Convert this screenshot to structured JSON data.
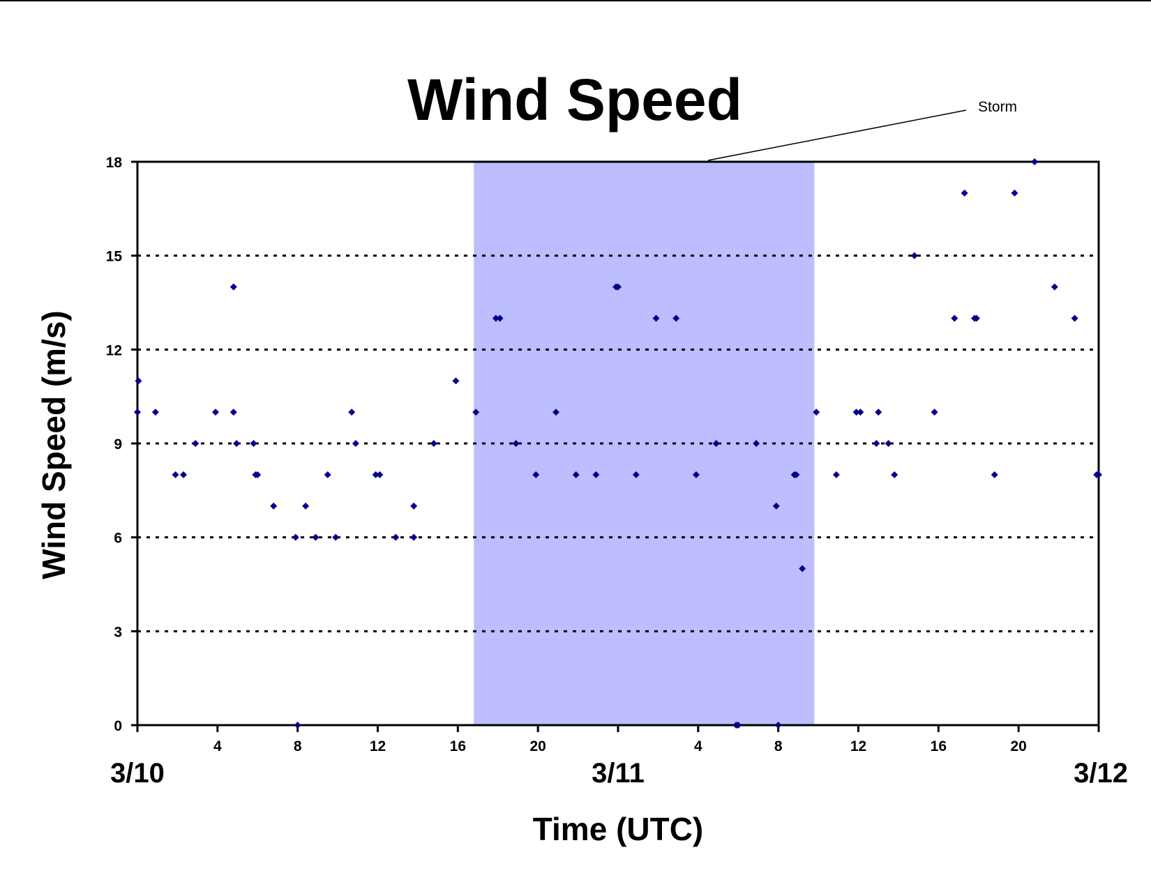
{
  "chart_data": {
    "type": "scatter",
    "title": "Wind Speed",
    "xlabel": "Time (UTC)",
    "ylabel": "Wind Speed (m/s)",
    "ylim": [
      0,
      18
    ],
    "yticks": [
      0,
      3,
      6,
      9,
      12,
      15,
      18
    ],
    "xlim_hours": [
      0,
      48
    ],
    "xtick_hours": [
      0,
      4,
      8,
      12,
      16,
      20,
      24,
      28,
      32,
      36,
      40,
      44,
      48
    ],
    "xtick_labels": [
      "",
      "4",
      "8",
      "12",
      "16",
      "20",
      "",
      "4",
      "8",
      "12",
      "16",
      "20",
      ""
    ],
    "date_labels": [
      {
        "hour": 0,
        "label": "3/10"
      },
      {
        "hour": 24,
        "label": "3/11"
      },
      {
        "hour": 48,
        "label": "3/12"
      }
    ],
    "grid": "horizontal dotted",
    "marker_color": "#00008B",
    "shaded_region": {
      "label": "Storm",
      "from_hour": 16.8,
      "to_hour": 33.8,
      "color": "#BDBDFF"
    },
    "annotations": [
      {
        "text": "Storm"
      }
    ],
    "points": [
      {
        "x": 0.0,
        "y": 10
      },
      {
        "x": 0.05,
        "y": 11
      },
      {
        "x": 0.9,
        "y": 10
      },
      {
        "x": 1.9,
        "y": 8
      },
      {
        "x": 2.3,
        "y": 8
      },
      {
        "x": 2.9,
        "y": 9
      },
      {
        "x": 3.9,
        "y": 10
      },
      {
        "x": 4.8,
        "y": 14
      },
      {
        "x": 4.8,
        "y": 10
      },
      {
        "x": 4.95,
        "y": 9
      },
      {
        "x": 5.8,
        "y": 9
      },
      {
        "x": 5.9,
        "y": 8
      },
      {
        "x": 6.0,
        "y": 8
      },
      {
        "x": 6.8,
        "y": 7
      },
      {
        "x": 7.9,
        "y": 6
      },
      {
        "x": 8.0,
        "y": 0
      },
      {
        "x": 8.4,
        "y": 7
      },
      {
        "x": 8.9,
        "y": 6
      },
      {
        "x": 9.5,
        "y": 8
      },
      {
        "x": 9.9,
        "y": 6
      },
      {
        "x": 10.7,
        "y": 10
      },
      {
        "x": 10.9,
        "y": 9
      },
      {
        "x": 11.9,
        "y": 8
      },
      {
        "x": 12.1,
        "y": 8
      },
      {
        "x": 12.9,
        "y": 6
      },
      {
        "x": 13.8,
        "y": 7
      },
      {
        "x": 13.8,
        "y": 6
      },
      {
        "x": 14.8,
        "y": 9
      },
      {
        "x": 15.9,
        "y": 11
      },
      {
        "x": 16.9,
        "y": 10
      },
      {
        "x": 17.9,
        "y": 13
      },
      {
        "x": 18.1,
        "y": 13
      },
      {
        "x": 18.9,
        "y": 9
      },
      {
        "x": 19.9,
        "y": 8
      },
      {
        "x": 20.9,
        "y": 10
      },
      {
        "x": 21.9,
        "y": 8
      },
      {
        "x": 22.9,
        "y": 8
      },
      {
        "x": 23.9,
        "y": 14
      },
      {
        "x": 24.0,
        "y": 14
      },
      {
        "x": 24.9,
        "y": 8
      },
      {
        "x": 25.9,
        "y": 13
      },
      {
        "x": 26.9,
        "y": 13
      },
      {
        "x": 27.9,
        "y": 8
      },
      {
        "x": 28.9,
        "y": 9
      },
      {
        "x": 29.9,
        "y": 0
      },
      {
        "x": 30.0,
        "y": 0
      },
      {
        "x": 30.9,
        "y": 9
      },
      {
        "x": 31.9,
        "y": 7
      },
      {
        "x": 32.0,
        "y": 0
      },
      {
        "x": 32.8,
        "y": 8
      },
      {
        "x": 32.9,
        "y": 8
      },
      {
        "x": 33.2,
        "y": 5
      },
      {
        "x": 33.9,
        "y": 10
      },
      {
        "x": 34.9,
        "y": 8
      },
      {
        "x": 35.9,
        "y": 10
      },
      {
        "x": 36.1,
        "y": 10
      },
      {
        "x": 36.9,
        "y": 9
      },
      {
        "x": 37.0,
        "y": 10
      },
      {
        "x": 37.5,
        "y": 9
      },
      {
        "x": 37.8,
        "y": 8
      },
      {
        "x": 38.8,
        "y": 15
      },
      {
        "x": 39.8,
        "y": 10
      },
      {
        "x": 40.8,
        "y": 13
      },
      {
        "x": 41.3,
        "y": 17
      },
      {
        "x": 41.8,
        "y": 13
      },
      {
        "x": 41.9,
        "y": 13
      },
      {
        "x": 42.8,
        "y": 8
      },
      {
        "x": 43.8,
        "y": 17
      },
      {
        "x": 44.8,
        "y": 18
      },
      {
        "x": 45.8,
        "y": 14
      },
      {
        "x": 46.8,
        "y": 13
      },
      {
        "x": 47.9,
        "y": 8
      },
      {
        "x": 48.0,
        "y": 8
      }
    ]
  }
}
